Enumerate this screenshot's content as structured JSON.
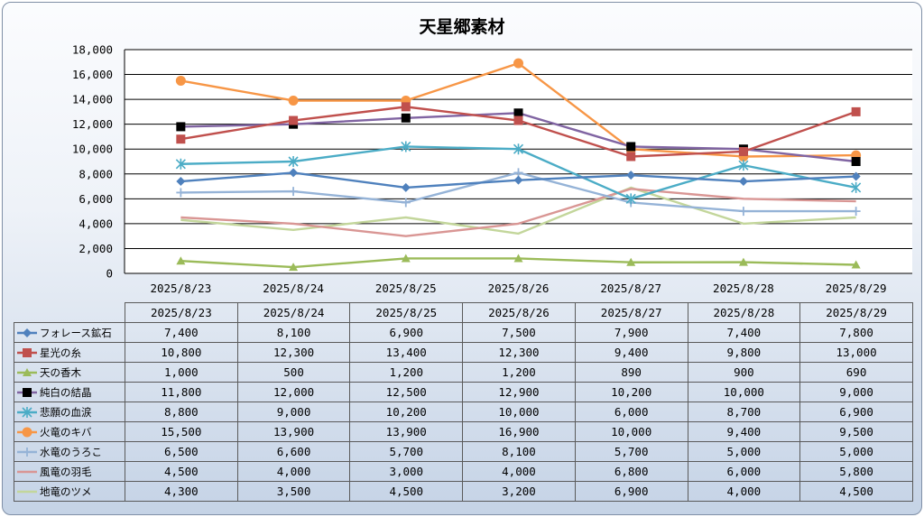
{
  "chart_data": {
    "type": "line",
    "title": "天星郷素材",
    "categories": [
      "2025/8/23",
      "2025/8/24",
      "2025/8/25",
      "2025/8/26",
      "2025/8/27",
      "2025/8/28",
      "2025/8/29"
    ],
    "ylim": [
      0,
      18000
    ],
    "yticks": [
      "0",
      "2,000",
      "4,000",
      "6,000",
      "8,000",
      "10,000",
      "12,000",
      "14,000",
      "16,000",
      "18,000"
    ],
    "grid": true,
    "legend": "data-table",
    "series": [
      {
        "name": "フォレース鉱石",
        "color": "#4f81bd",
        "marker": "diamond",
        "values": [
          7400,
          8100,
          6900,
          7500,
          7900,
          7400,
          7800
        ],
        "labels": [
          "7,400",
          "8,100",
          "6,900",
          "7,500",
          "7,900",
          "7,400",
          "7,800"
        ]
      },
      {
        "name": "星光の糸",
        "color": "#c0504d",
        "marker": "square",
        "values": [
          10800,
          12300,
          13400,
          12300,
          9400,
          9800,
          13000
        ],
        "labels": [
          "10,800",
          "12,300",
          "13,400",
          "12,300",
          "9,400",
          "9,800",
          "13,000"
        ]
      },
      {
        "name": "天の香木",
        "color": "#9bbb59",
        "marker": "triangle",
        "values": [
          1000,
          500,
          1200,
          1200,
          890,
          900,
          690
        ],
        "labels": [
          "1,000",
          "500",
          "1,200",
          "1,200",
          "890",
          "900",
          "690"
        ]
      },
      {
        "name": "純白の結晶",
        "color": "#8064a2",
        "marker": "blacksquare",
        "values": [
          11800,
          12000,
          12500,
          12900,
          10200,
          10000,
          9000
        ],
        "labels": [
          "11,800",
          "12,000",
          "12,500",
          "12,900",
          "10,200",
          "10,000",
          "9,000"
        ]
      },
      {
        "name": "悲願の血涙",
        "color": "#4bacc6",
        "marker": "asterisk",
        "values": [
          8800,
          9000,
          10200,
          10000,
          6000,
          8700,
          6900
        ],
        "labels": [
          "8,800",
          "9,000",
          "10,200",
          "10,000",
          "6,000",
          "8,700",
          "6,900"
        ]
      },
      {
        "name": "火竜のキバ",
        "color": "#f79646",
        "marker": "circle",
        "values": [
          15500,
          13900,
          13900,
          16900,
          10000,
          9400,
          9500
        ],
        "labels": [
          "15,500",
          "13,900",
          "13,900",
          "16,900",
          "10,000",
          "9,400",
          "9,500"
        ]
      },
      {
        "name": "水竜のうろこ",
        "color": "#95b3d7",
        "marker": "plus",
        "values": [
          6500,
          6600,
          5700,
          8100,
          5700,
          5000,
          5000
        ],
        "labels": [
          "6,500",
          "6,600",
          "5,700",
          "8,100",
          "5,700",
          "5,000",
          "5,000"
        ]
      },
      {
        "name": "風竜の羽毛",
        "color": "#d99694",
        "marker": "none",
        "values": [
          4500,
          4000,
          3000,
          4000,
          6800,
          6000,
          5800
        ],
        "labels": [
          "4,500",
          "4,000",
          "3,000",
          "4,000",
          "6,800",
          "6,000",
          "5,800"
        ]
      },
      {
        "name": "地竜のツメ",
        "color": "#c3d69b",
        "marker": "none",
        "values": [
          4300,
          3500,
          4500,
          3200,
          6900,
          4000,
          4500
        ],
        "labels": [
          "4,300",
          "3,500",
          "4,500",
          "3,200",
          "6,900",
          "4,000",
          "4,500"
        ]
      }
    ]
  }
}
